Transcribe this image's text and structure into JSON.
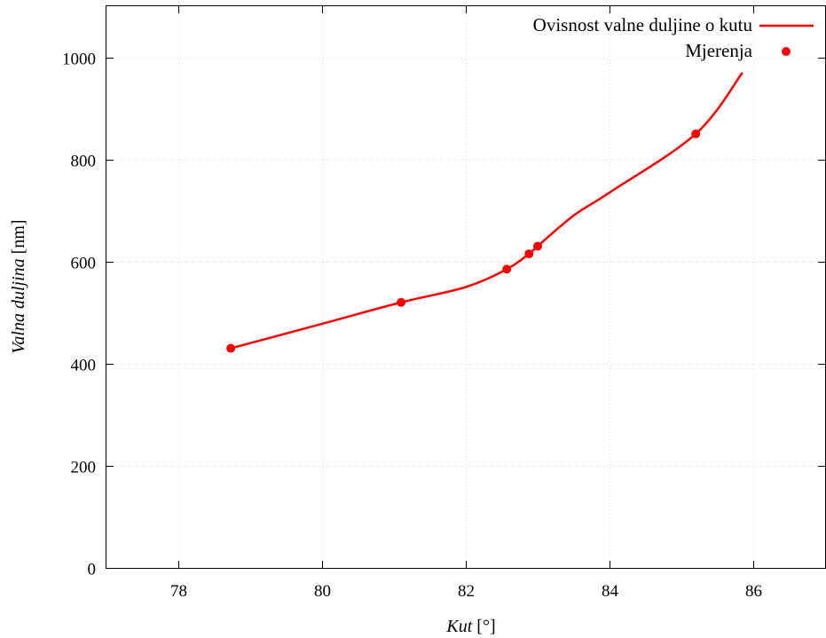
{
  "chart_data": {
    "type": "line",
    "xlabel": "Kut",
    "xunit": "[°]",
    "ylabel": "Valna duljina",
    "yunit": "[nm]",
    "xlim": [
      77,
      87
    ],
    "ylim": [
      0,
      1100
    ],
    "xticks": [
      78,
      80,
      82,
      84,
      86
    ],
    "yticks": [
      0,
      200,
      400,
      600,
      800,
      1000
    ],
    "grid": true,
    "legend_position": "top-right",
    "series": [
      {
        "name": "Ovisnost valne duljine o kutu",
        "kind": "line",
        "color": "#ff0000",
        "x": [
          78.73,
          80.0,
          81.1,
          82.0,
          82.57,
          82.88,
          83.0,
          83.5,
          84.0,
          85.2,
          85.85
        ],
        "y": [
          430,
          478,
          520,
          550,
          585,
          615,
          630,
          690,
          735,
          850,
          970
        ]
      },
      {
        "name": "Mjerenja",
        "kind": "scatter",
        "color": "#ff0000",
        "x": [
          78.73,
          81.1,
          82.57,
          82.88,
          83.0,
          85.2
        ],
        "y": [
          430,
          520,
          585,
          615,
          630,
          850
        ]
      }
    ]
  }
}
